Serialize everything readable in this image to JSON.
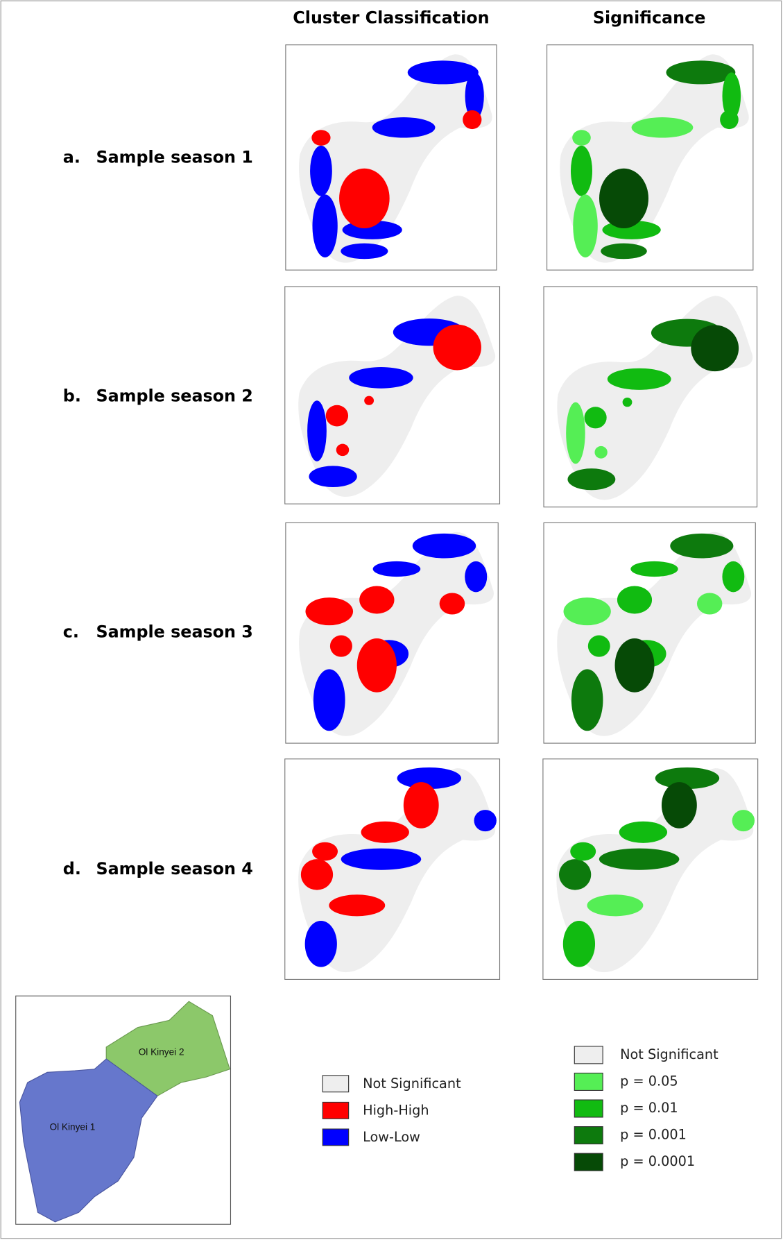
{
  "header": {
    "cluster_title": "Cluster Classification",
    "significance_title": "Significance"
  },
  "rows": [
    {
      "letter": "a.",
      "label": "Sample season 1"
    },
    {
      "letter": "b.",
      "label": "Sample season 2"
    },
    {
      "letter": "c.",
      "label": "Sample season 3"
    },
    {
      "letter": "d.",
      "label": "Sample season 4"
    }
  ],
  "inset_map": {
    "regions": [
      "Ol Kinyei 2",
      "Ol Kinyei 1"
    ]
  },
  "cluster_legend": [
    "Not Significant",
    "High-High",
    "Low-Low"
  ],
  "significance_legend": [
    "Not Significant",
    "p = 0.05",
    "p = 0.01",
    "p = 0.001",
    "p = 0.0001"
  ]
}
